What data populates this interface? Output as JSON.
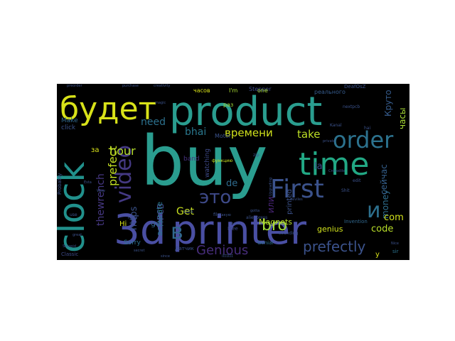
{
  "wordcloud": {
    "background": "#000000",
    "palette": "viridis",
    "words": [
      {
        "text": "buy",
        "color": "#2a9d8f"
      },
      {
        "text": "product",
        "color": "#2a9d8f"
      },
      {
        "text": "3d",
        "color": "#4a4fa3"
      },
      {
        "text": "printer",
        "color": "#4a4fa3"
      },
      {
        "text": "clock",
        "color": "#21918c"
      },
      {
        "text": "будет",
        "color": "#d8e219"
      },
      {
        "text": "time",
        "color": "#22a884"
      },
      {
        "text": "First",
        "color": "#3b528b"
      },
      {
        "text": "order",
        "color": "#2c728e"
      },
      {
        "text": "video",
        "color": "#443983"
      },
      {
        "text": "это",
        "color": "#3e4a89"
      },
      {
        "text": "в",
        "color": "#31688e"
      },
      {
        "text": "и",
        "color": "#2d708e"
      },
      {
        "text": "bro",
        "color": "#a0da39"
      },
      {
        "text": "prefectly",
        "color": "#3b528b"
      },
      {
        "text": "Genious",
        "color": "#472d7b"
      },
      {
        "text": "hour",
        "color": "#b5de2b"
      },
      {
        "text": "prefect",
        "color": "#c2df23"
      },
      {
        "text": "времени",
        "color": "#d0e11c"
      },
      {
        "text": "take",
        "color": "#bddf26"
      },
      {
        "text": "bhai",
        "color": "#2a788e"
      },
      {
        "text": "need",
        "color": "#2c718e"
      },
      {
        "text": "Get",
        "color": "#c8e020"
      },
      {
        "text": "https",
        "color": "#3b528b"
      },
      {
        "text": "thewrench",
        "color": "#453781"
      },
      {
        "text": "PCB",
        "color": "#3f4788"
      },
      {
        "text": "money",
        "color": "#2e6e8e"
      },
      {
        "text": "code",
        "color": "#b8de29"
      },
      {
        "text": "com",
        "color": "#d2e21b"
      },
      {
        "text": "la",
        "color": "#3e4989"
      },
      {
        "text": "de",
        "color": "#2f6b8e"
      },
      {
        "text": "или",
        "color": "#482475"
      },
      {
        "text": "Круто",
        "color": "#365c8d"
      },
      {
        "text": "часы",
        "color": "#a8db34"
      },
      {
        "text": "сейчас",
        "color": "#35608d"
      },
      {
        "text": "Magnets",
        "color": "#b8de29"
      },
      {
        "text": "genius",
        "color": "#d0e11c"
      },
      {
        "text": "accurate",
        "color": "#2a788e"
      },
      {
        "text": "got",
        "color": "#31688e"
      },
      {
        "text": "printed",
        "color": "#3b528b"
      },
      {
        "text": "watching",
        "color": "#3e4a89"
      },
      {
        "text": "band",
        "color": "#46337f"
      },
      {
        "text": "Make",
        "color": "#31688e"
      },
      {
        "text": "click",
        "color": "#3b528b"
      },
      {
        "text": "за",
        "color": "#d8e219"
      },
      {
        "text": "Hi",
        "color": "#d8e219"
      },
      {
        "text": "y",
        "color": "#d8e219"
      },
      {
        "text": "Sorry",
        "color": "#2c728e"
      },
      {
        "text": "Stepper",
        "color": "#3e4a89"
      },
      {
        "text": "Motor",
        "color": "#3b528b"
      },
      {
        "text": "часов",
        "color": "#d8e219"
      },
      {
        "text": "one",
        "color": "#a8db34"
      },
      {
        "text": "раз",
        "color": "#a0da39"
      },
      {
        "text": "I'm",
        "color": "#a8db34"
      },
      {
        "text": "реального",
        "color": "#365c8d"
      },
      {
        "text": "Invention",
        "color": "#31688e"
      },
      {
        "text": "Classic",
        "color": "#3e4a89"
      },
      {
        "text": "Probably",
        "color": "#3b528b"
      },
      {
        "text": "Free",
        "color": "#3e4a89"
      },
      {
        "text": "Genial",
        "color": "#2c728e"
      },
      {
        "text": "sir",
        "color": "#2c728e"
      },
      {
        "text": "nextpcb",
        "color": "#3b528b"
      },
      {
        "text": "edit",
        "color": "#3b528b"
      },
      {
        "text": "Shit",
        "color": "#3b528b"
      },
      {
        "text": "file",
        "color": "#3b528b"
      },
      {
        "text": "stick",
        "color": "#3b528b"
      },
      {
        "text": "Датчик",
        "color": "#3b528b"
      },
      {
        "text": "функцию",
        "color": "#c8e020"
      },
      {
        "text": "zip",
        "color": "#3b528b"
      },
      {
        "text": "hai",
        "color": "#3b528b"
      },
      {
        "text": "use",
        "color": "#3b528b"
      },
      {
        "text": "aliexpress",
        "color": "#3b528b"
      },
      {
        "text": "sounding",
        "color": "#3b528b"
      },
      {
        "text": "preorder",
        "color": "#3b528b"
      },
      {
        "text": "purchase",
        "color": "#3b528b"
      },
      {
        "text": "creativity",
        "color": "#3b528b"
      },
      {
        "text": "DeafOsZ",
        "color": "#3b528b"
      },
      {
        "text": "Kanal",
        "color": "#3b528b"
      },
      {
        "text": "private",
        "color": "#3b528b"
      },
      {
        "text": "secret",
        "color": "#3b528b"
      },
      {
        "text": "since",
        "color": "#3b528b"
      },
      {
        "text": "itttttt",
        "color": "#3b528b"
      },
      {
        "text": "bucks",
        "color": "#3b528b"
      },
      {
        "text": "Какую",
        "color": "#3b528b"
      },
      {
        "text": "gotta",
        "color": "#3b528b"
      },
      {
        "text": "Upgrading",
        "color": "#3b528b"
      },
      {
        "text": "Crocodile",
        "color": "#3b528b"
      },
      {
        "text": "Stoopid",
        "color": "#3b528b"
      },
      {
        "text": "Haha",
        "color": "#3b528b"
      },
      {
        "text": "Esta",
        "color": "#3b528b"
      },
      {
        "text": "Wow",
        "color": "#3b528b"
      },
      {
        "text": "magic",
        "color": "#3b528b"
      },
      {
        "text": "deviles",
        "color": "#3b528b"
      },
      {
        "text": "great",
        "color": "#3b528b"
      },
      {
        "text": "Nice",
        "color": "#3b528b"
      }
    ]
  }
}
